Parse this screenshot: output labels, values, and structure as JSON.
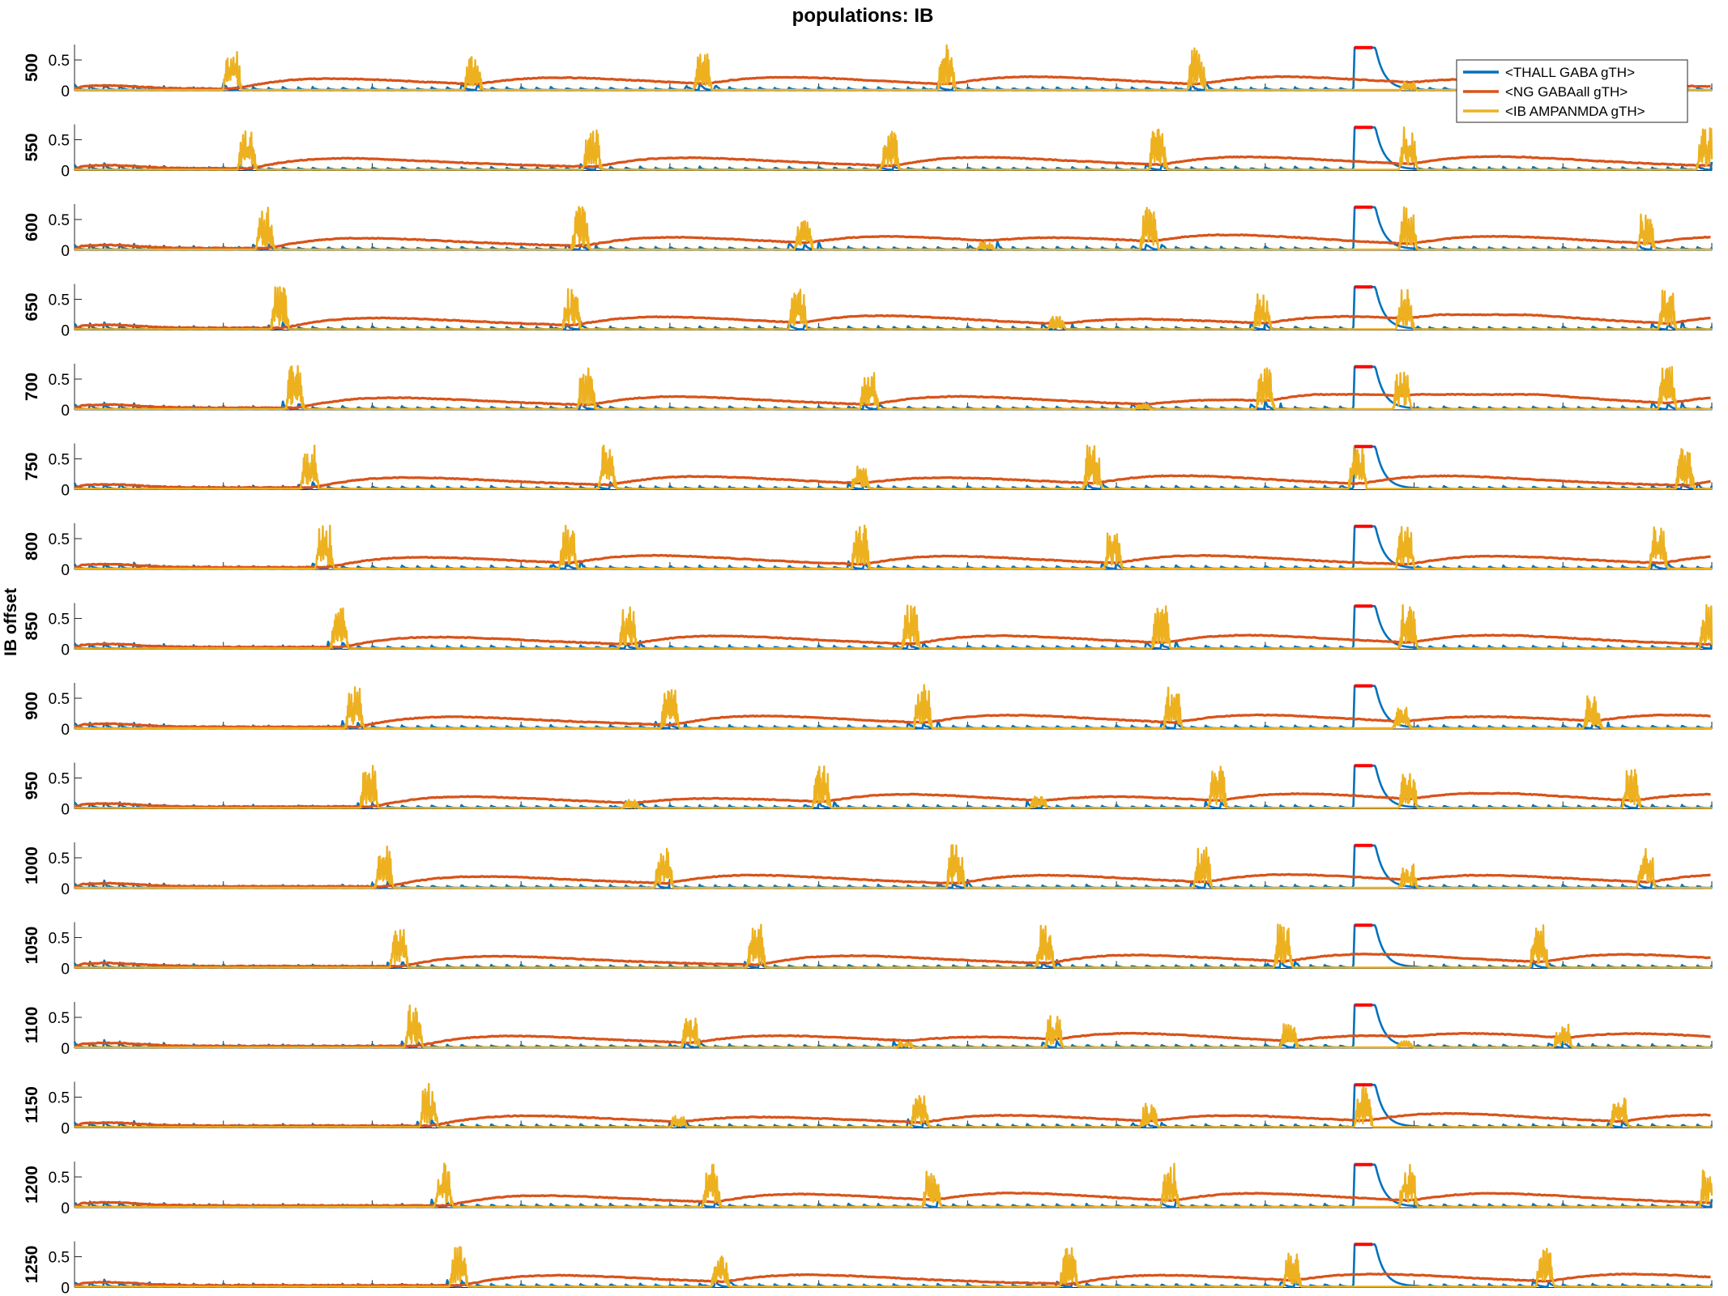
{
  "chart_data": {
    "type": "line",
    "title": "populations: IB",
    "ylabel": "IB offset",
    "xlabel": "",
    "xlim": [
      0,
      5500
    ],
    "x_ticks": [
      0,
      500,
      1000,
      1500,
      2000,
      2500,
      3000,
      3500,
      4000,
      4500,
      5000,
      5500
    ],
    "ylim": [
      0,
      0.75
    ],
    "y_ticks": [
      0,
      0.5
    ],
    "y_tick_labels": [
      "0",
      "0.5"
    ],
    "legend_position": "top-right",
    "series": [
      {
        "name": "<THALL GABA gTH>",
        "color": "#0072BD"
      },
      {
        "name": "<NG GABAall gTH>",
        "color": "#D95319"
      },
      {
        "name": "<IB AMPANMDA gTH>",
        "color": "#EDB120"
      }
    ],
    "pulse_window": [
      4300,
      4370
    ],
    "pulse_marker_color": "#FF0000",
    "pulse_level": 0.7,
    "panels": [
      {
        "label": "500",
        "bursts": [
          [
            530,
            0.72
          ],
          [
            1340,
            0.55
          ],
          [
            2110,
            0.6
          ],
          [
            2930,
            0.75
          ],
          [
            3770,
            0.72
          ],
          [
            4480,
            0.15
          ]
        ]
      },
      {
        "label": "550",
        "bursts": [
          [
            580,
            0.72
          ],
          [
            1740,
            0.72
          ],
          [
            2740,
            0.72
          ],
          [
            3640,
            0.72
          ],
          [
            4480,
            0.72
          ],
          [
            5480,
            0.72
          ]
        ]
      },
      {
        "label": "600",
        "bursts": [
          [
            640,
            0.72
          ],
          [
            1700,
            0.72
          ],
          [
            2450,
            0.6
          ],
          [
            3060,
            0.15
          ],
          [
            3610,
            0.72
          ],
          [
            4480,
            0.72
          ],
          [
            5280,
            0.6
          ]
        ]
      },
      {
        "label": "650",
        "bursts": [
          [
            690,
            0.72
          ],
          [
            1670,
            0.72
          ],
          [
            2430,
            0.7
          ],
          [
            3300,
            0.22
          ],
          [
            3990,
            0.6
          ],
          [
            4470,
            0.7
          ],
          [
            5350,
            0.72
          ]
        ]
      },
      {
        "label": "700",
        "bursts": [
          [
            740,
            0.72
          ],
          [
            1720,
            0.72
          ],
          [
            2670,
            0.72
          ],
          [
            3590,
            0.1
          ],
          [
            4000,
            0.72
          ],
          [
            4460,
            0.72
          ],
          [
            5350,
            0.72
          ]
        ]
      },
      {
        "label": "750",
        "bursts": [
          [
            790,
            0.72
          ],
          [
            1790,
            0.72
          ],
          [
            2640,
            0.4
          ],
          [
            3420,
            0.72
          ],
          [
            4310,
            0.72
          ],
          [
            5410,
            0.72
          ]
        ]
      },
      {
        "label": "800",
        "bursts": [
          [
            840,
            0.72
          ],
          [
            1660,
            0.72
          ],
          [
            2640,
            0.72
          ],
          [
            3490,
            0.72
          ],
          [
            4470,
            0.72
          ],
          [
            5320,
            0.72
          ]
        ]
      },
      {
        "label": "850",
        "bursts": [
          [
            890,
            0.72
          ],
          [
            1860,
            0.72
          ],
          [
            2810,
            0.72
          ],
          [
            3650,
            0.72
          ],
          [
            4480,
            0.72
          ],
          [
            5490,
            0.72
          ]
        ]
      },
      {
        "label": "900",
        "bursts": [
          [
            940,
            0.72
          ],
          [
            2000,
            0.72
          ],
          [
            2850,
            0.72
          ],
          [
            3690,
            0.72
          ],
          [
            4460,
            0.35
          ],
          [
            5100,
            0.55
          ]
        ]
      },
      {
        "label": "950",
        "bursts": [
          [
            990,
            0.72
          ],
          [
            1870,
            0.15
          ],
          [
            2510,
            0.72
          ],
          [
            3240,
            0.22
          ],
          [
            3840,
            0.72
          ],
          [
            4480,
            0.72
          ],
          [
            5230,
            0.65
          ]
        ]
      },
      {
        "label": "1000",
        "bursts": [
          [
            1040,
            0.72
          ],
          [
            1980,
            0.72
          ],
          [
            2960,
            0.72
          ],
          [
            3790,
            0.72
          ],
          [
            4480,
            0.4
          ],
          [
            5280,
            0.72
          ]
        ]
      },
      {
        "label": "1050",
        "bursts": [
          [
            1090,
            0.72
          ],
          [
            2290,
            0.72
          ],
          [
            3260,
            0.72
          ],
          [
            4060,
            0.72
          ],
          [
            4920,
            0.72
          ]
        ]
      },
      {
        "label": "1100",
        "bursts": [
          [
            1140,
            0.72
          ],
          [
            2070,
            0.55
          ],
          [
            2790,
            0.12
          ],
          [
            3290,
            0.55
          ],
          [
            4080,
            0.4
          ],
          [
            4470,
            0.12
          ],
          [
            5000,
            0.4
          ]
        ]
      },
      {
        "label": "1150",
        "bursts": [
          [
            1190,
            0.72
          ],
          [
            2030,
            0.2
          ],
          [
            2840,
            0.55
          ],
          [
            3610,
            0.4
          ],
          [
            4330,
            0.72
          ],
          [
            5190,
            0.55
          ]
        ]
      },
      {
        "label": "1200",
        "bursts": [
          [
            1240,
            0.72
          ],
          [
            2140,
            0.72
          ],
          [
            2880,
            0.72
          ],
          [
            3680,
            0.72
          ],
          [
            4480,
            0.72
          ],
          [
            5490,
            0.72
          ]
        ]
      },
      {
        "label": "1250",
        "bursts": [
          [
            1290,
            0.72
          ],
          [
            2170,
            0.55
          ],
          [
            3340,
            0.65
          ],
          [
            4090,
            0.55
          ],
          [
            4940,
            0.65
          ]
        ]
      }
    ]
  }
}
